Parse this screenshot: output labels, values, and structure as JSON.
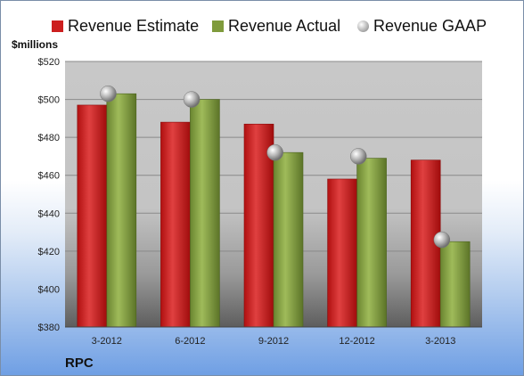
{
  "chart_data": {
    "type": "bar",
    "title": "",
    "ylabel": "$millions",
    "xlabel": "",
    "categories": [
      "3-2012",
      "6-2012",
      "9-2012",
      "12-2012",
      "3-2013"
    ],
    "series": [
      {
        "name": "Revenue Estimate",
        "kind": "bar",
        "color": "#cc1f1f",
        "values": [
          497,
          488,
          487,
          458,
          468
        ]
      },
      {
        "name": "Revenue Actual",
        "kind": "bar",
        "color": "#7f9b3c",
        "values": [
          503,
          500,
          472,
          469,
          425
        ]
      },
      {
        "name": "Revenue GAAP",
        "kind": "marker",
        "color": "#b8b8b8",
        "values": [
          503,
          500,
          472,
          470,
          426
        ]
      }
    ],
    "ylim": [
      380,
      520
    ],
    "yticks": [
      380,
      400,
      420,
      440,
      460,
      480,
      500,
      520
    ],
    "ytick_labels": [
      "$380",
      "$400",
      "$420",
      "$440",
      "$460",
      "$480",
      "$500",
      "$520"
    ],
    "grid": true,
    "legend": "top"
  },
  "legend": {
    "estimate": "Revenue Estimate",
    "actual": "Revenue Actual",
    "gaap": "Revenue GAAP"
  },
  "unit_label": "$millions",
  "ticker": "RPC"
}
